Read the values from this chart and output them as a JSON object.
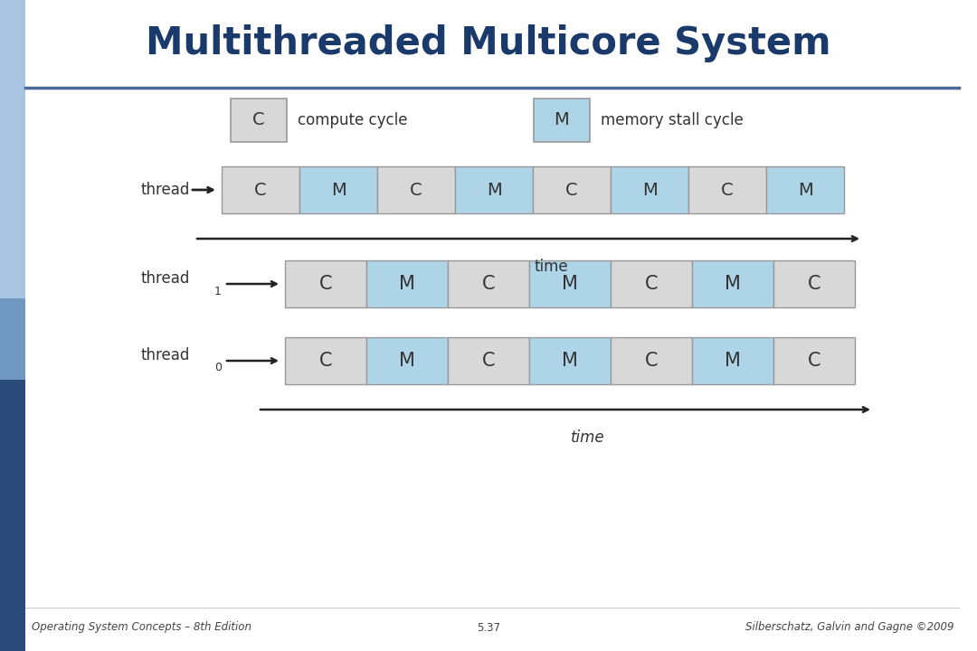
{
  "title": "Multithreaded Multicore System",
  "title_color": "#1a3a6b",
  "title_fontsize": 30,
  "bg_color": "#ffffff",
  "compute_color": "#d8d8d8",
  "memory_color": "#aed4e8",
  "border_color": "#999999",
  "text_color": "#333333",
  "sidebar_color": "#5080b0",
  "sidebar_bottom_color": "#2a4a7a",
  "footer_left": "Operating System Concepts – 8th Edition",
  "footer_center": "5.37",
  "footer_right": "Silberschatz, Galvin and Gagne ©2009",
  "single_thread_labels": [
    "C",
    "M",
    "C",
    "M",
    "C",
    "M",
    "C",
    "M"
  ],
  "thread1_labels": [
    "C",
    "M",
    "C",
    "M",
    "C",
    "M",
    "C"
  ],
  "thread0_labels": [
    "C",
    "M",
    "C",
    "M",
    "C",
    "M",
    "C"
  ],
  "hr_color": "#4a6a9a",
  "arrow_color": "#222222"
}
